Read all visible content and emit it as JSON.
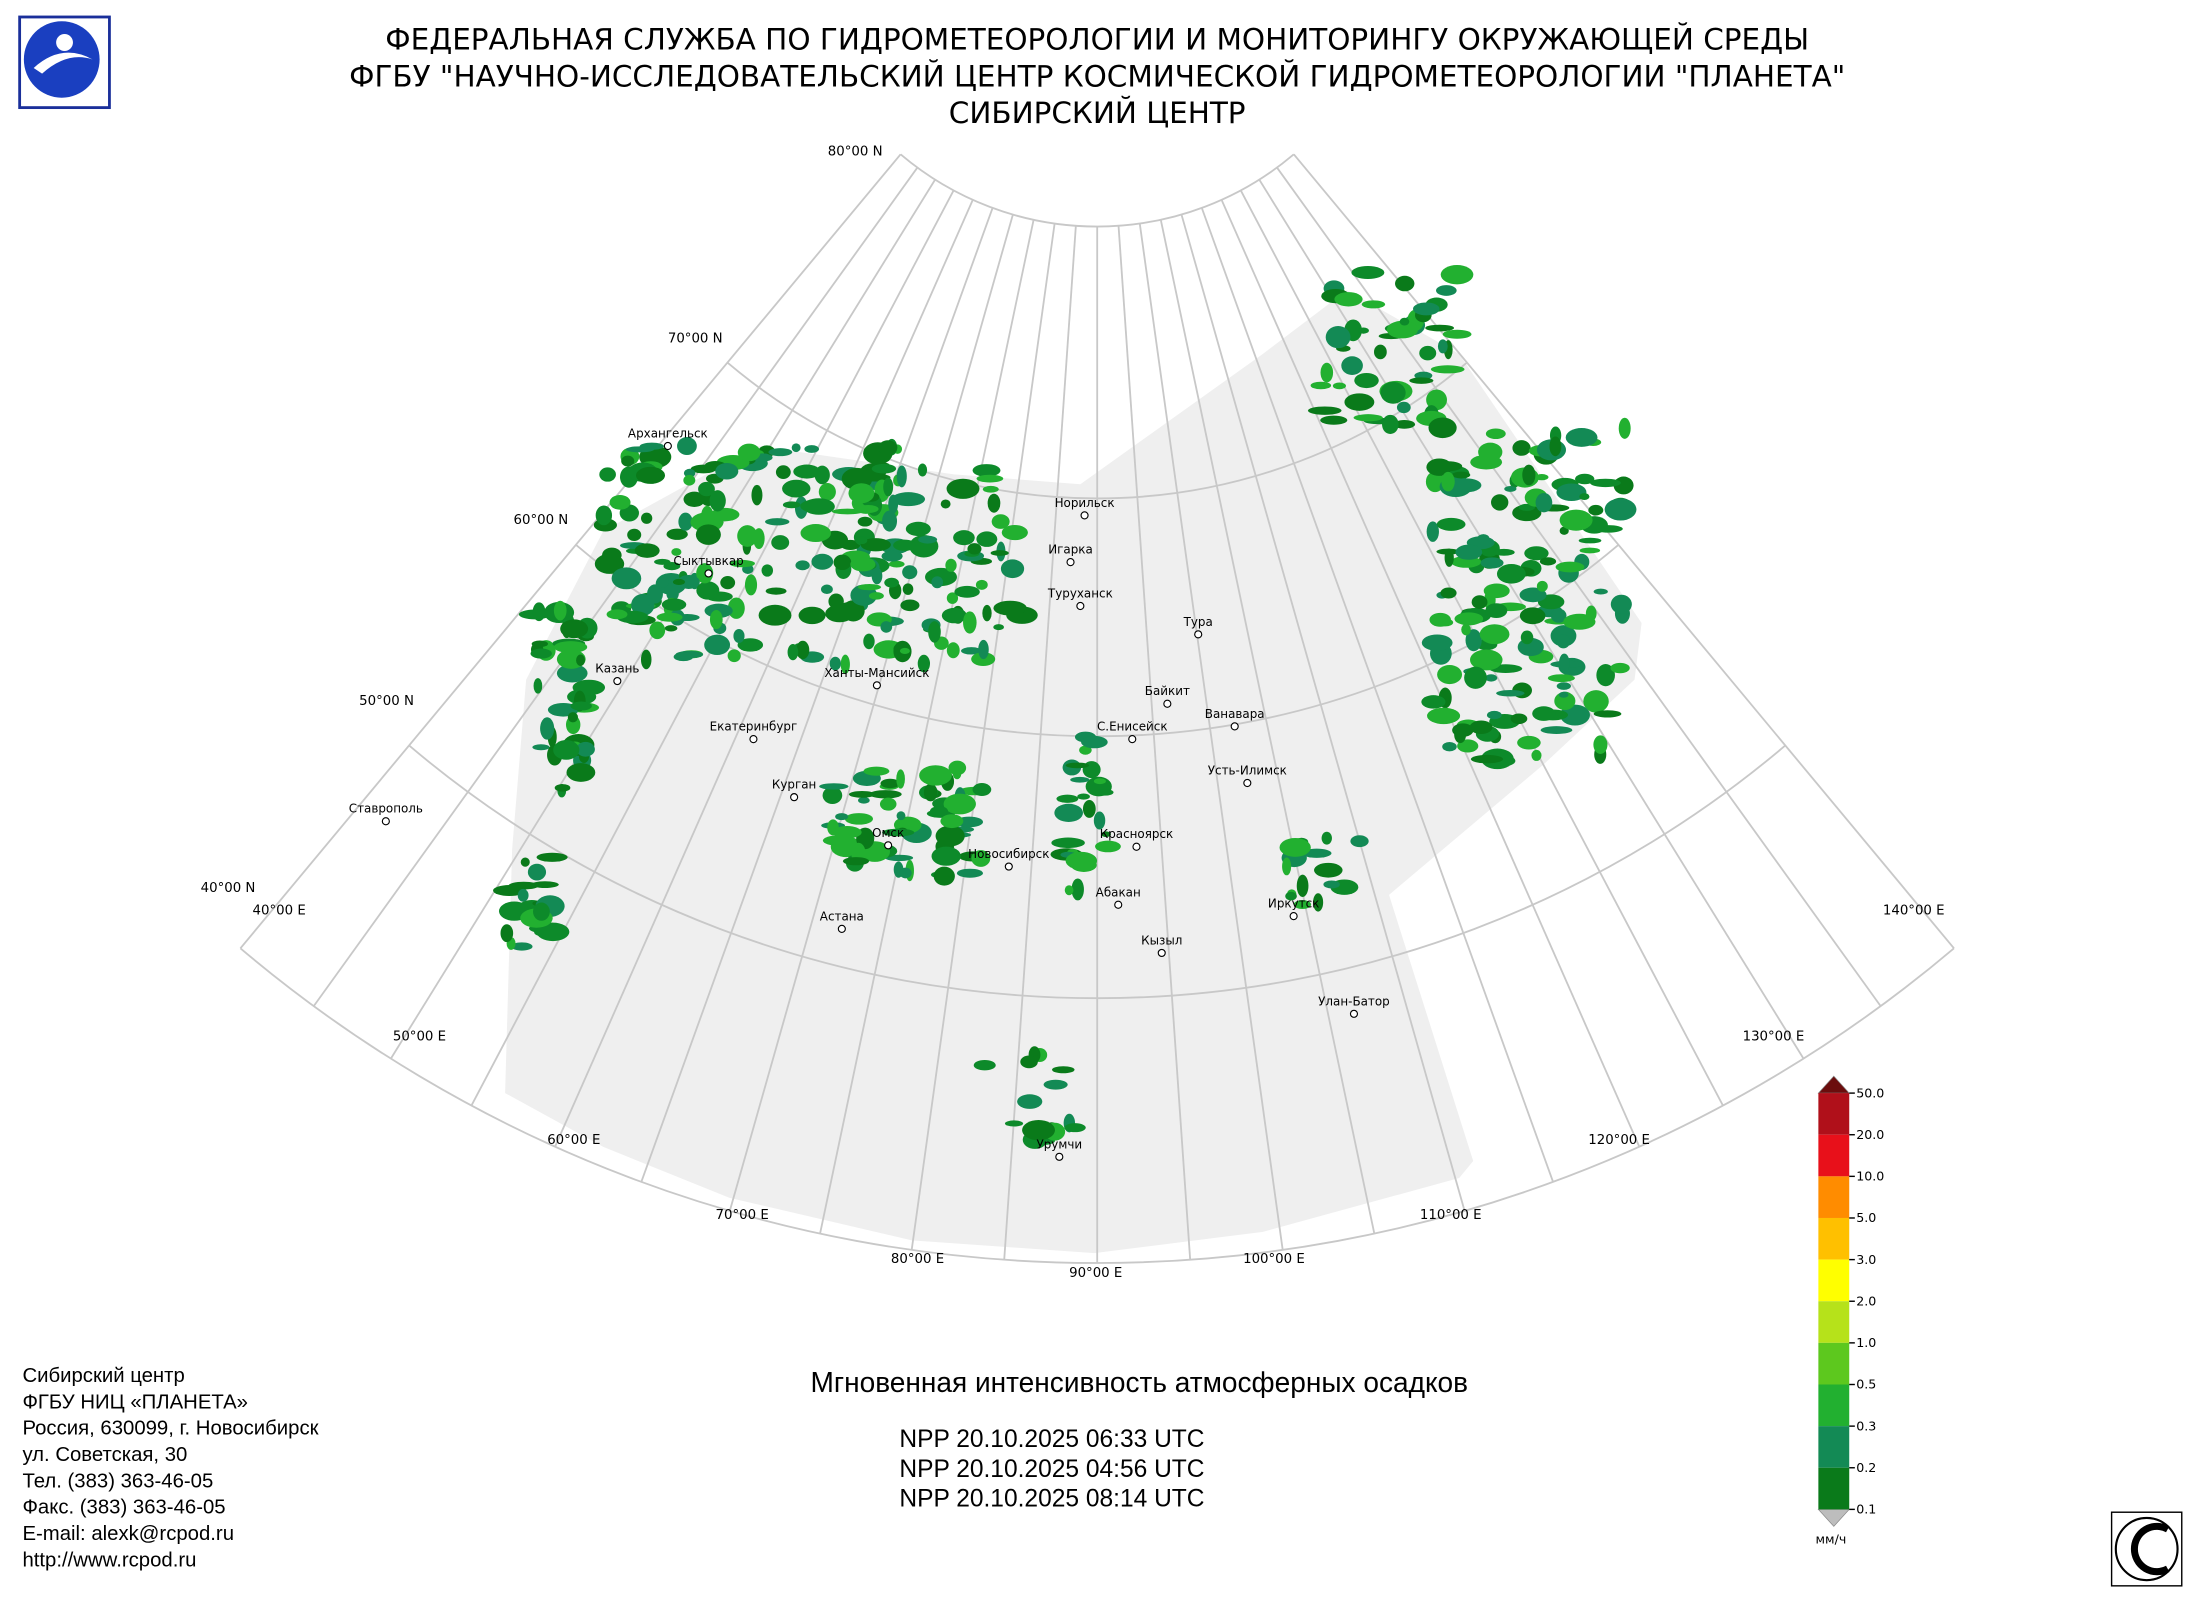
{
  "header": {
    "lines": [
      "ФЕДЕРАЛЬНАЯ СЛУЖБА ПО ГИДРОМЕТЕОРОЛОГИИ И МОНИТОРИНГУ ОКРУЖАЮЩЕЙ СРЕДЫ",
      "ФГБУ \"НАУЧНО-ИССЛЕДОВАТЕЛЬСКИЙ ЦЕНТР КОСМИЧЕСКОЙ ГИДРОМЕТЕОРОЛОГИИ \"ПЛАНЕТА\"",
      "СИБИРСКИЙ ЦЕНТР"
    ]
  },
  "map": {
    "parallel_labels": [
      "80°00 N",
      "70°00 N",
      "60°00 N",
      "50°00 N",
      "40°00 N"
    ],
    "meridian_labels": [
      "40°00 E",
      "50°00 E",
      "60°00 E",
      "70°00 E",
      "80°00 E",
      "90°00 E",
      "100°00 E",
      "110°00 E",
      "120°00 E",
      "130°00 E",
      "140°00 E"
    ],
    "cities": [
      "Архангельск",
      "Сыктывкар",
      "Казань",
      "Ханты-Мансийск",
      "Екатеринбург",
      "Курган",
      "Ставрополь",
      "Омск",
      "Астана",
      "Новосибирск",
      "Норильск",
      "Игарка",
      "Туруханск",
      "Тура",
      "Байкит",
      "С.Енисейск",
      "Ванавара",
      "Усть-Илимск",
      "Красноярск",
      "Абакан",
      "Иркутск",
      "Кызыл",
      "Улан-Батор",
      "Урумчи"
    ]
  },
  "legend": {
    "ticks": [
      "50.0",
      "20.0",
      "10.0",
      "5.0",
      "3.0",
      "2.0",
      "1.0",
      "0.5",
      "0.3",
      "0.2",
      "0.1"
    ],
    "unit": "мм/ч"
  },
  "title": "Мгновенная интенсивность атмосферных осадков",
  "passes": [
    "NPP 20.10.2025  06:33 UTC",
    "NPP 20.10.2025  04:56 UTC",
    "NPP 20.10.2025  08:14 UTC"
  ],
  "contact": [
    "Сибирский центр",
    "ФГБУ НИЦ «ПЛАНЕТА»",
    "Россия, 630099, г. Новосибирск",
    "ул. Советская, 30",
    "Тел. (383) 363-46-05",
    "Факс. (383) 363-46-05",
    "E-mail: alexk@rcpod.ru",
    "http://www.rcpod.ru"
  ]
}
